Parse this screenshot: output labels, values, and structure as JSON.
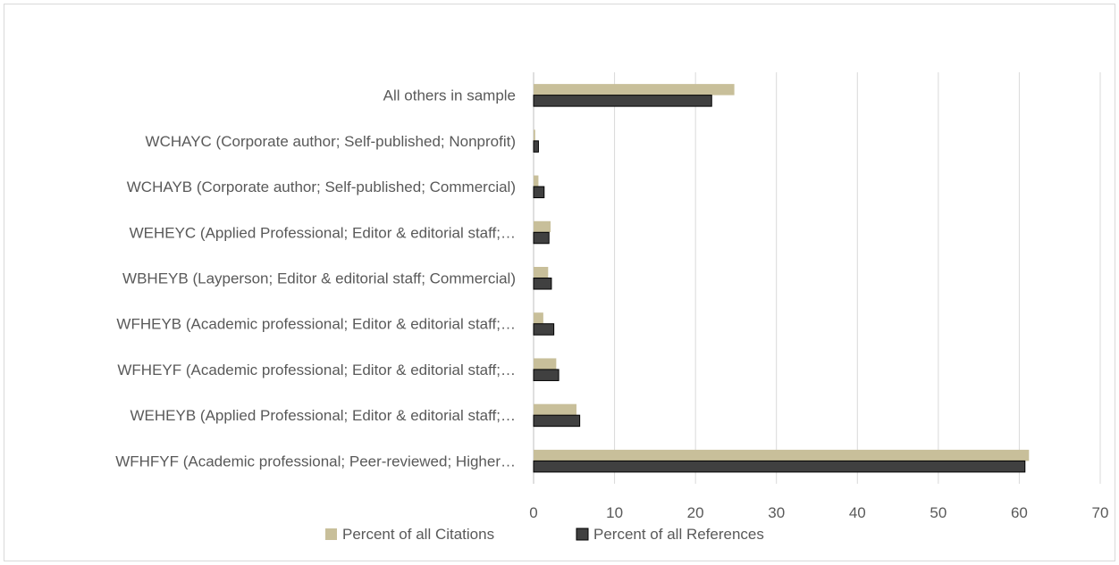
{
  "chart_data": {
    "type": "bar",
    "orientation": "horizontal",
    "title": "",
    "xlabel": "",
    "ylabel": "",
    "categories": [
      "All others in sample",
      "WCHAYC (Corporate author; Self-published; Nonprofit)",
      "WCHAYB (Corporate author; Self-published; Commercial)",
      "WEHEYC (Applied Professional; Editor & editorial staff;…",
      "WBHEYB (Layperson; Editor & editorial staff; Commercial)",
      "WFHEYB (Academic professional; Editor & editorial staff;…",
      "WFHEYF (Academic professional; Editor & editorial staff;…",
      "WEHEYB (Applied Professional; Editor & editorial staff;…",
      "WFHFYF (Academic professional; Peer-reviewed; Higher…"
    ],
    "series": [
      {
        "name": "Percent of all Citations",
        "color": "#c8bf9a",
        "values": [
          24.8,
          0.2,
          0.6,
          2.1,
          1.8,
          1.2,
          2.8,
          5.3,
          61.2
        ]
      },
      {
        "name": "Percent of all References",
        "color": "#404040",
        "values": [
          22.0,
          0.6,
          1.3,
          1.9,
          2.2,
          2.5,
          3.1,
          5.7,
          60.7
        ]
      }
    ],
    "xlim": [
      0,
      70
    ],
    "xticks": [
      0,
      10,
      20,
      30,
      40,
      50,
      60,
      70
    ],
    "grid": true,
    "legend_position": "bottom"
  }
}
